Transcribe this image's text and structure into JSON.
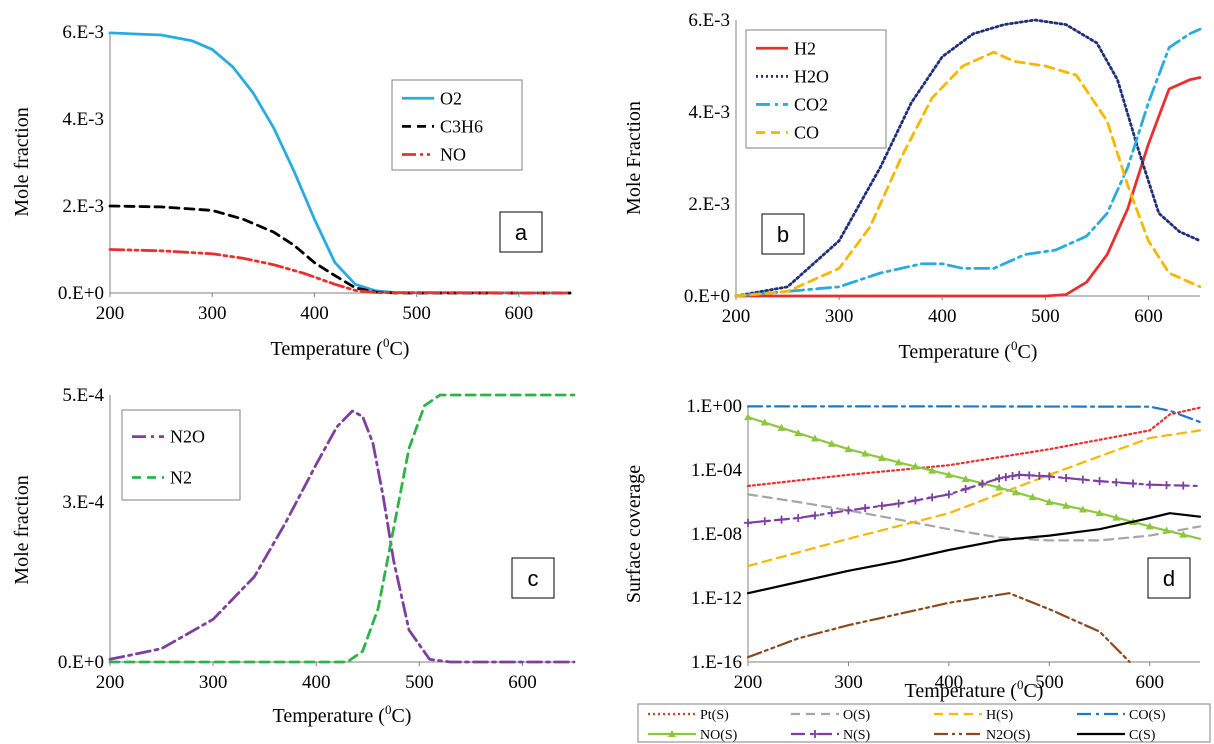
{
  "chart_data": [
    {
      "panel": "a",
      "type": "line",
      "xlabel": "Temperature (0C)",
      "ylabel": "Mole fraction",
      "xlim": [
        200,
        650
      ],
      "ylim": [
        0,
        0.006
      ],
      "xticks": [
        "200",
        "300",
        "400",
        "500",
        "600"
      ],
      "yticks": [
        "0.E+0",
        "2.E-3",
        "4.E-3",
        "6.E-3"
      ],
      "legend_position": "top-right",
      "series": [
        {
          "name": "O2",
          "color": "#29ABE2",
          "style": "solid",
          "x": [
            200,
            250,
            280,
            300,
            320,
            340,
            360,
            380,
            400,
            420,
            440,
            460,
            480,
            650
          ],
          "y": [
            0.00598,
            0.00593,
            0.0058,
            0.0056,
            0.0052,
            0.0046,
            0.0038,
            0.0028,
            0.0017,
            0.0007,
            0.0002,
            5e-05,
            1e-05,
            0
          ]
        },
        {
          "name": "C3H6",
          "color": "#000000",
          "style": "dash",
          "x": [
            200,
            250,
            300,
            330,
            360,
            380,
            400,
            420,
            440,
            460,
            480,
            650
          ],
          "y": [
            0.002,
            0.00198,
            0.0019,
            0.0017,
            0.0014,
            0.0011,
            0.0007,
            0.0004,
            0.00012,
            2e-05,
            0,
            0
          ]
        },
        {
          "name": "NO",
          "color": "#E8312F",
          "style": "dashdotdot",
          "x": [
            200,
            250,
            300,
            330,
            360,
            390,
            420,
            440,
            460,
            650
          ],
          "y": [
            0.001,
            0.00097,
            0.0009,
            0.0008,
            0.00065,
            0.00045,
            0.0002,
            6e-05,
            1e-05,
            0
          ]
        }
      ]
    },
    {
      "panel": "b",
      "type": "line",
      "xlabel": "Temperature (0C)",
      "ylabel": "Mole Fraction",
      "xlim": [
        200,
        650
      ],
      "ylim": [
        0,
        0.006
      ],
      "xticks": [
        "200",
        "300",
        "400",
        "500",
        "600"
      ],
      "yticks": [
        "0.E+0",
        "2.E-3",
        "4.E-3",
        "6.E-3"
      ],
      "legend_position": "top-left",
      "series": [
        {
          "name": "H2",
          "color": "#E8312F",
          "style": "solid",
          "x": [
            200,
            500,
            520,
            540,
            560,
            580,
            600,
            620,
            640,
            650
          ],
          "y": [
            0,
            0,
            3e-05,
            0.0003,
            0.0009,
            0.0019,
            0.0033,
            0.0045,
            0.0047,
            0.00475
          ]
        },
        {
          "name": "H2O",
          "color": "#1F2F7A",
          "style": "dot",
          "x": [
            200,
            250,
            300,
            340,
            370,
            400,
            430,
            460,
            490,
            520,
            550,
            570,
            590,
            610,
            630,
            650
          ],
          "y": [
            0,
            0.0002,
            0.0012,
            0.0028,
            0.0042,
            0.0052,
            0.0057,
            0.0059,
            0.006,
            0.0059,
            0.0055,
            0.0047,
            0.0032,
            0.0018,
            0.0014,
            0.0012
          ]
        },
        {
          "name": "CO2",
          "color": "#29ABE2",
          "style": "dashdot",
          "x": [
            200,
            250,
            300,
            340,
            380,
            400,
            420,
            450,
            480,
            510,
            540,
            560,
            580,
            600,
            620,
            640,
            650
          ],
          "y": [
            0,
            0.0001,
            0.0002,
            0.0005,
            0.0007,
            0.0007,
            0.0006,
            0.0006,
            0.0009,
            0.001,
            0.0013,
            0.0018,
            0.0028,
            0.0042,
            0.0054,
            0.0057,
            0.0058
          ]
        },
        {
          "name": "CO",
          "color": "#F5B800",
          "style": "dash",
          "x": [
            200,
            250,
            300,
            330,
            360,
            390,
            420,
            450,
            470,
            500,
            530,
            560,
            580,
            600,
            620,
            650
          ],
          "y": [
            0,
            0.0001,
            0.0006,
            0.0015,
            0.003,
            0.0043,
            0.005,
            0.0053,
            0.0051,
            0.005,
            0.0048,
            0.0038,
            0.0024,
            0.0012,
            0.0005,
            0.0002
          ]
        }
      ]
    },
    {
      "panel": "c",
      "type": "line",
      "xlabel": "Temperature (0C)",
      "ylabel": "Mole fraction",
      "xlim": [
        200,
        650
      ],
      "ylim": [
        0,
        0.0005
      ],
      "xticks": [
        "200",
        "300",
        "400",
        "500",
        "600"
      ],
      "yticks": [
        "0.E+0",
        "3.E-4",
        "5.E-4"
      ],
      "legend_position": "top-left",
      "series": [
        {
          "name": "N2O",
          "color": "#7E3FA0",
          "style": "dashdot",
          "x": [
            200,
            250,
            300,
            340,
            370,
            400,
            420,
            435,
            445,
            455,
            465,
            475,
            490,
            510,
            530,
            650
          ],
          "y": [
            5e-06,
            2.5e-05,
            8e-05,
            0.00016,
            0.00026,
            0.00037,
            0.00044,
            0.00047,
            0.00046,
            0.00041,
            0.00031,
            0.00019,
            6e-05,
            5e-06,
            0,
            0
          ]
        },
        {
          "name": "N2",
          "color": "#2DB34A",
          "style": "dash",
          "x": [
            200,
            430,
            445,
            460,
            475,
            490,
            505,
            520,
            650
          ],
          "y": [
            0,
            0,
            2e-05,
            0.0001,
            0.00025,
            0.0004,
            0.00048,
            0.0005,
            0.0005
          ]
        }
      ]
    },
    {
      "panel": "d",
      "type": "line",
      "scale_y": "log",
      "xlabel": "Temperature (0C)",
      "ylabel": "Surface coverage",
      "xlim": [
        200,
        650
      ],
      "ylim": [
        1e-16,
        1
      ],
      "xticks": [
        "200",
        "300",
        "400",
        "500",
        "600"
      ],
      "yticks": [
        "1.E-16",
        "1.E-12",
        "1.E-08",
        "1.E-04",
        "1.E+00"
      ],
      "legend_position": "bottom",
      "series": [
        {
          "name": "Pt(S)",
          "color": "#E8312F",
          "style": "dot",
          "x": [
            200,
            300,
            400,
            500,
            600,
            620,
            650
          ],
          "y": [
            1e-05,
            5e-05,
            0.0002,
            0.002,
            0.03,
            0.3,
            0.8
          ]
        },
        {
          "name": "O(S)",
          "color": "#A6A6A6",
          "style": "dash",
          "x": [
            200,
            250,
            300,
            350,
            400,
            450,
            500,
            550,
            600,
            650
          ],
          "y": [
            3e-06,
            1e-06,
            3e-07,
            8e-08,
            2e-08,
            6e-09,
            4e-09,
            4e-09,
            8e-09,
            3e-08
          ]
        },
        {
          "name": "H(S)",
          "color": "#F5B800",
          "style": "dash",
          "x": [
            200,
            300,
            400,
            500,
            600,
            650
          ],
          "y": [
            1e-10,
            5e-09,
            2e-07,
            5e-05,
            0.01,
            0.03
          ]
        },
        {
          "name": "CO(S)",
          "color": "#1F77C8",
          "style": "dashdot",
          "x": [
            200,
            400,
            600,
            620,
            650
          ],
          "y": [
            0.95,
            0.95,
            0.9,
            0.5,
            0.1
          ]
        },
        {
          "name": "NO(S)",
          "color": "#8DC63F",
          "style": "solid",
          "marker": "triangle",
          "x": [
            200,
            250,
            300,
            350,
            400,
            450,
            500,
            550,
            600,
            650
          ],
          "y": [
            0.2,
            0.02,
            0.002,
            0.0003,
            5e-05,
            8e-06,
            1e-06,
            2e-07,
            3e-08,
            5e-09
          ]
        },
        {
          "name": "N(S)",
          "color": "#7E3FA0",
          "style": "dashdot",
          "marker": "plus",
          "x": [
            200,
            250,
            300,
            350,
            400,
            450,
            470,
            500,
            550,
            600,
            650
          ],
          "y": [
            5e-08,
            1e-07,
            3e-07,
            8e-07,
            3e-06,
            3e-05,
            5e-05,
            4e-05,
            2e-05,
            1.2e-05,
            1e-05
          ]
        },
        {
          "name": "N2O(S)",
          "color": "#8B4A1E",
          "style": "dashdotdot",
          "x": [
            200,
            250,
            300,
            350,
            400,
            460,
            500,
            550,
            580
          ],
          "y": [
            2e-16,
            3e-15,
            2e-14,
            1e-13,
            5e-13,
            2e-12,
            2e-13,
            8e-15,
            1e-16
          ]
        },
        {
          "name": "C(S)",
          "color": "#000000",
          "style": "solid",
          "x": [
            200,
            250,
            300,
            350,
            400,
            450,
            500,
            550,
            600,
            620,
            650
          ],
          "y": [
            2e-12,
            1e-11,
            5e-11,
            2e-10,
            1e-09,
            4e-09,
            8e-09,
            2e-08,
            1e-07,
            2e-07,
            1.2e-07
          ]
        }
      ]
    }
  ],
  "panel_labels": [
    "a",
    "b",
    "c",
    "d"
  ],
  "xlabel_main": "Temperature (",
  "xlabel_sup": "0",
  "xlabel_end": "C)"
}
